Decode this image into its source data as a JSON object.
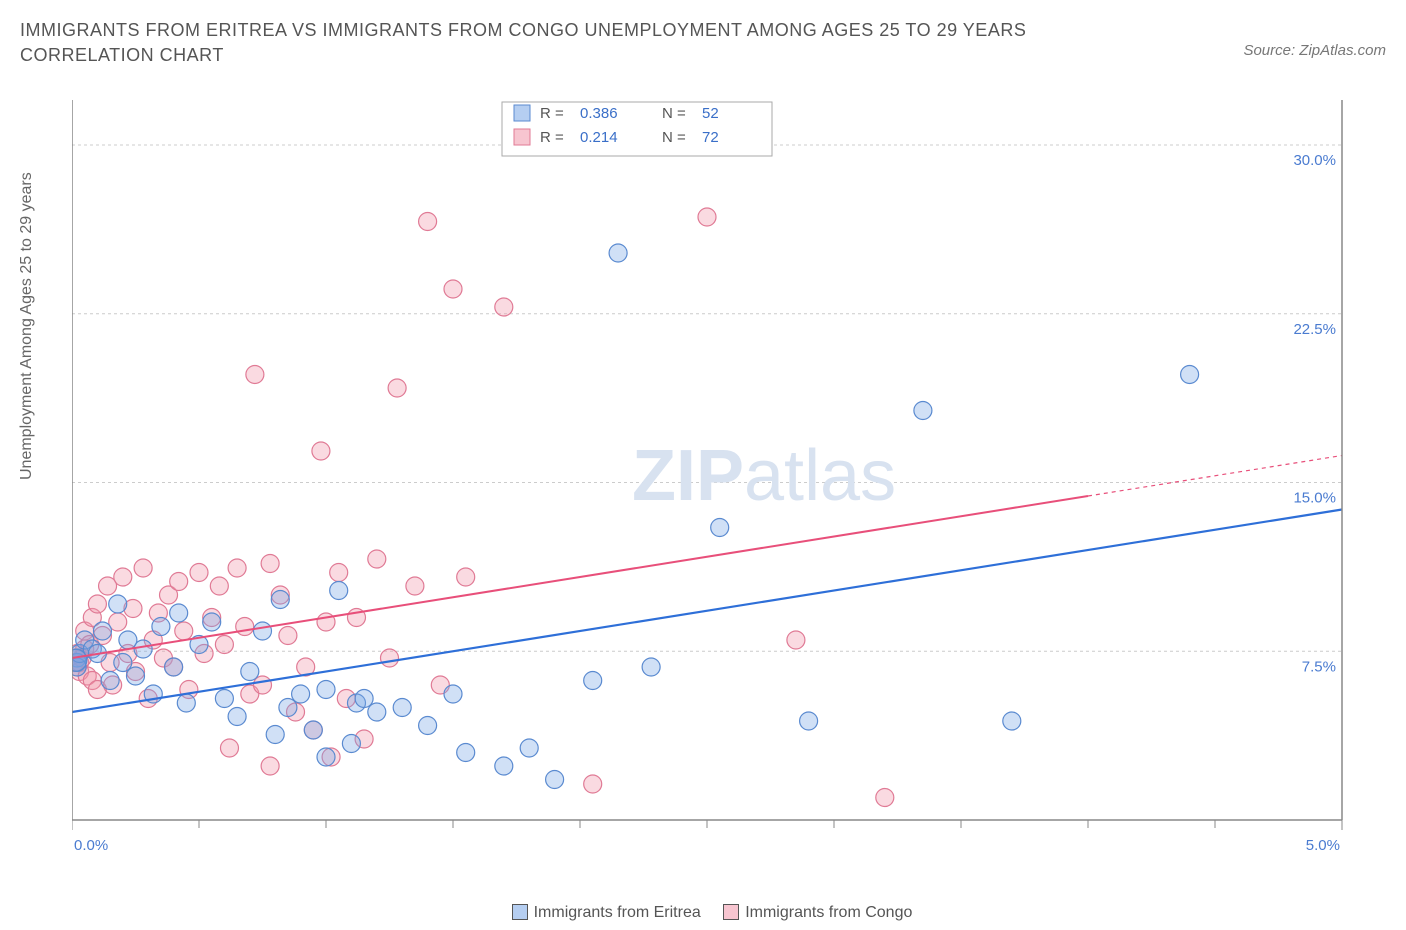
{
  "title": "IMMIGRANTS FROM ERITREA VS IMMIGRANTS FROM CONGO UNEMPLOYMENT AMONG AGES 25 TO 29 YEARS CORRELATION CHART",
  "source": "Source: ZipAtlas.com",
  "y_axis_label": "Unemployment Among Ages 25 to 29 years",
  "watermark_bold": "ZIP",
  "watermark_light": "atlas",
  "chart": {
    "type": "scatter",
    "xlim": [
      0.0,
      5.0
    ],
    "ylim": [
      0.0,
      32.0
    ],
    "x_ticks": [
      0.0,
      5.0
    ],
    "x_tick_labels": [
      "0.0%",
      "5.0%"
    ],
    "x_minor_ticks": [
      0.5,
      1.0,
      1.5,
      2.0,
      2.5,
      3.0,
      3.5,
      4.0,
      4.5
    ],
    "y_ticks": [
      7.5,
      15.0,
      22.5,
      30.0
    ],
    "y_tick_labels": [
      "7.5%",
      "15.0%",
      "22.5%",
      "30.0%"
    ],
    "background_color": "#ffffff",
    "grid_color": "#cccccc",
    "marker_radius": 9,
    "marker_radius_lg": 11,
    "series": [
      {
        "name": "Immigrants from Eritrea",
        "color_fill": "rgba(120,165,230,0.35)",
        "color_stroke": "#5a8ad0",
        "trend_color": "#2e6fd8",
        "R": "0.386",
        "N": "52",
        "trend": {
          "x1": 0.0,
          "y1": 4.8,
          "x2": 5.0,
          "y2": 13.8
        },
        "points": [
          [
            0.02,
            7.2
          ],
          [
            0.02,
            7.0
          ],
          [
            0.02,
            6.8
          ],
          [
            0.03,
            7.4
          ],
          [
            0.05,
            8.0
          ],
          [
            0.08,
            7.6
          ],
          [
            0.1,
            7.4
          ],
          [
            0.12,
            8.4
          ],
          [
            0.15,
            6.2
          ],
          [
            0.18,
            9.6
          ],
          [
            0.2,
            7.0
          ],
          [
            0.22,
            8.0
          ],
          [
            0.25,
            6.4
          ],
          [
            0.28,
            7.6
          ],
          [
            0.32,
            5.6
          ],
          [
            0.35,
            8.6
          ],
          [
            0.4,
            6.8
          ],
          [
            0.42,
            9.2
          ],
          [
            0.45,
            5.2
          ],
          [
            0.5,
            7.8
          ],
          [
            0.55,
            8.8
          ],
          [
            0.6,
            5.4
          ],
          [
            0.65,
            4.6
          ],
          [
            0.7,
            6.6
          ],
          [
            0.75,
            8.4
          ],
          [
            0.8,
            3.8
          ],
          [
            0.82,
            9.8
          ],
          [
            0.85,
            5.0
          ],
          [
            0.9,
            5.6
          ],
          [
            0.95,
            4.0
          ],
          [
            1.0,
            5.8
          ],
          [
            1.0,
            2.8
          ],
          [
            1.05,
            10.2
          ],
          [
            1.1,
            3.4
          ],
          [
            1.12,
            5.2
          ],
          [
            1.15,
            5.4
          ],
          [
            1.2,
            4.8
          ],
          [
            1.3,
            5.0
          ],
          [
            1.4,
            4.2
          ],
          [
            1.5,
            5.6
          ],
          [
            1.55,
            3.0
          ],
          [
            1.7,
            2.4
          ],
          [
            1.8,
            3.2
          ],
          [
            1.9,
            1.8
          ],
          [
            2.05,
            6.2
          ],
          [
            2.15,
            25.2
          ],
          [
            2.28,
            6.8
          ],
          [
            2.55,
            13.0
          ],
          [
            2.9,
            4.4
          ],
          [
            3.35,
            18.2
          ],
          [
            3.7,
            4.4
          ],
          [
            4.4,
            19.8
          ]
        ]
      },
      {
        "name": "Immigrants from Congo",
        "color_fill": "rgba(240,150,170,0.35)",
        "color_stroke": "#e07a95",
        "trend_color": "#e84f7a",
        "R": "0.214",
        "N": "72",
        "trend_solid": {
          "x1": 0.0,
          "y1": 7.2,
          "x2": 4.0,
          "y2": 14.4
        },
        "trend_dash": {
          "x1": 4.0,
          "y1": 14.4,
          "x2": 5.0,
          "y2": 16.2
        },
        "points": [
          [
            0.01,
            7.0
          ],
          [
            0.01,
            7.2
          ],
          [
            0.02,
            6.8
          ],
          [
            0.02,
            7.4
          ],
          [
            0.03,
            7.0
          ],
          [
            0.03,
            6.6
          ],
          [
            0.04,
            7.2
          ],
          [
            0.05,
            7.6
          ],
          [
            0.05,
            8.4
          ],
          [
            0.06,
            6.4
          ],
          [
            0.07,
            7.8
          ],
          [
            0.08,
            9.0
          ],
          [
            0.08,
            6.2
          ],
          [
            0.1,
            9.6
          ],
          [
            0.1,
            5.8
          ],
          [
            0.12,
            8.2
          ],
          [
            0.14,
            10.4
          ],
          [
            0.15,
            7.0
          ],
          [
            0.16,
            6.0
          ],
          [
            0.18,
            8.8
          ],
          [
            0.2,
            10.8
          ],
          [
            0.22,
            7.4
          ],
          [
            0.24,
            9.4
          ],
          [
            0.25,
            6.6
          ],
          [
            0.28,
            11.2
          ],
          [
            0.3,
            5.4
          ],
          [
            0.32,
            8.0
          ],
          [
            0.34,
            9.2
          ],
          [
            0.36,
            7.2
          ],
          [
            0.38,
            10.0
          ],
          [
            0.4,
            6.8
          ],
          [
            0.42,
            10.6
          ],
          [
            0.44,
            8.4
          ],
          [
            0.46,
            5.8
          ],
          [
            0.5,
            11.0
          ],
          [
            0.52,
            7.4
          ],
          [
            0.55,
            9.0
          ],
          [
            0.58,
            10.4
          ],
          [
            0.6,
            7.8
          ],
          [
            0.62,
            3.2
          ],
          [
            0.65,
            11.2
          ],
          [
            0.68,
            8.6
          ],
          [
            0.7,
            5.6
          ],
          [
            0.72,
            19.8
          ],
          [
            0.75,
            6.0
          ],
          [
            0.78,
            11.4
          ],
          [
            0.78,
            2.4
          ],
          [
            0.82,
            10.0
          ],
          [
            0.85,
            8.2
          ],
          [
            0.88,
            4.8
          ],
          [
            0.92,
            6.8
          ],
          [
            0.95,
            4.0
          ],
          [
            0.98,
            16.4
          ],
          [
            1.0,
            8.8
          ],
          [
            1.02,
            2.8
          ],
          [
            1.05,
            11.0
          ],
          [
            1.08,
            5.4
          ],
          [
            1.12,
            9.0
          ],
          [
            1.15,
            3.6
          ],
          [
            1.2,
            11.6
          ],
          [
            1.25,
            7.2
          ],
          [
            1.28,
            19.2
          ],
          [
            1.35,
            10.4
          ],
          [
            1.4,
            26.6
          ],
          [
            1.45,
            6.0
          ],
          [
            1.5,
            23.6
          ],
          [
            1.55,
            10.8
          ],
          [
            1.7,
            22.8
          ],
          [
            2.05,
            1.6
          ],
          [
            2.5,
            26.8
          ],
          [
            2.85,
            8.0
          ],
          [
            3.2,
            1.0
          ]
        ]
      }
    ]
  },
  "top_legend": {
    "rows": [
      {
        "swatch": "blue",
        "R_label": "R =",
        "R_val": "0.386",
        "N_label": "N =",
        "N_val": "52"
      },
      {
        "swatch": "pink",
        "R_label": "R =",
        "R_val": "0.214",
        "N_label": "N =",
        "N_val": "72"
      }
    ]
  },
  "bottom_legend": [
    {
      "swatch": "blue",
      "label": "Immigrants from Eritrea"
    },
    {
      "swatch": "pink",
      "label": "Immigrants from Congo"
    }
  ]
}
